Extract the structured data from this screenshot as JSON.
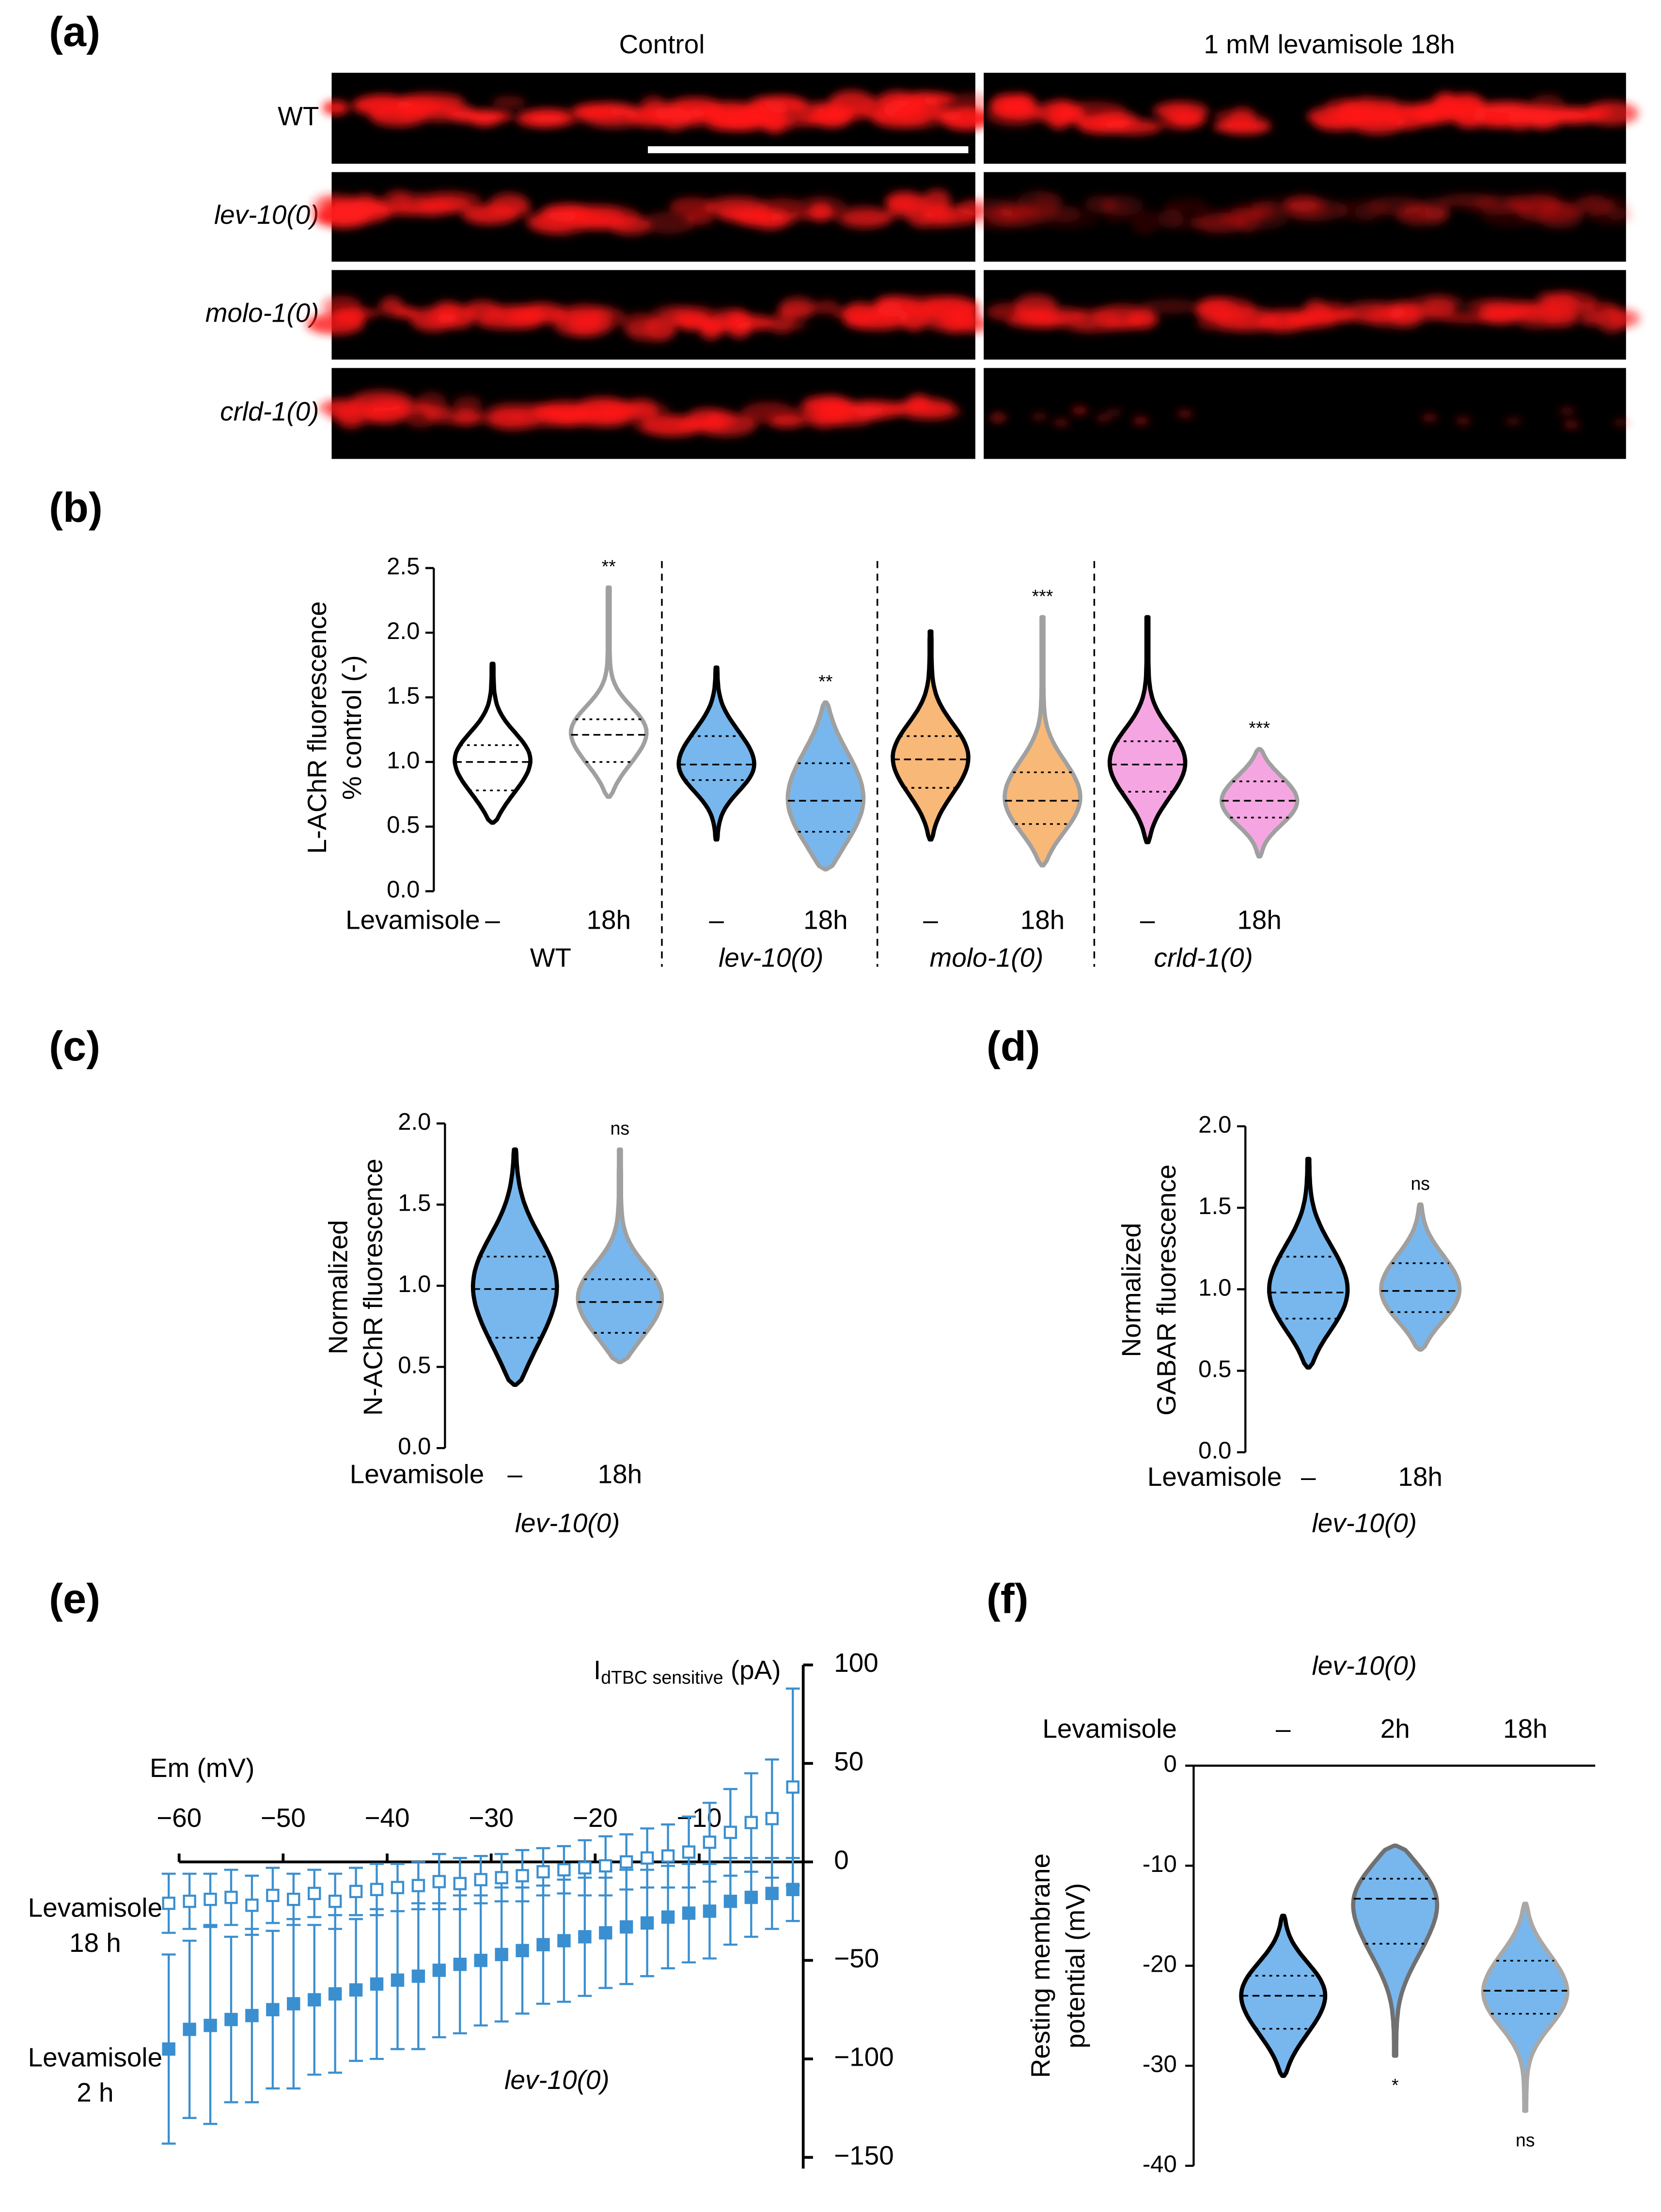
{
  "image_panel": {
    "panel": "(a)",
    "columns": [
      "Control",
      "1 mM levamisole 18h"
    ],
    "rows": [
      "WT",
      "lev-10(0)",
      "molo-1(0)",
      "crld-1(0)"
    ]
  },
  "chart_data": [
    {
      "panel": "(b)",
      "type": "violin",
      "y_label": [
        "L-AChR fluorescence",
        "% control (-)"
      ],
      "ylim": [
        0,
        2.5
      ],
      "yticks": [
        {
          "value": 0,
          "label": "0.0"
        },
        {
          "value": 0.5,
          "label": "0.5"
        },
        {
          "value": 1,
          "label": "1.0"
        },
        {
          "value": 1.5,
          "label": "1.5"
        },
        {
          "value": 2,
          "label": "2.0"
        },
        {
          "value": 2.5,
          "label": "2.5"
        }
      ],
      "row_label": "Levamisole",
      "groups": [
        {
          "name": "WT",
          "italic": false,
          "violins": [
            {
              "treatment": "–",
              "fill": "#ffffff",
              "edge": "#000000",
              "min": 0.53,
              "q1": 0.78,
              "median": 1.0,
              "q3": 1.13,
              "max": 1.76
            },
            {
              "treatment": "18h",
              "fill": "#ffffff",
              "edge": "#a0a0a0",
              "min": 0.73,
              "q1": 1.0,
              "median": 1.21,
              "q3": 1.33,
              "max": 2.35,
              "significance": "**"
            }
          ]
        },
        {
          "name": "lev-10(0)",
          "italic": true,
          "violins": [
            {
              "treatment": "–",
              "fill": "#77b7ee",
              "edge": "#000000",
              "min": 0.4,
              "q1": 0.86,
              "median": 0.98,
              "q3": 1.2,
              "max": 1.73
            },
            {
              "treatment": "18h",
              "fill": "#77b7ee",
              "edge": "#a0a0a0",
              "min": 0.17,
              "q1": 0.46,
              "median": 0.7,
              "q3": 0.99,
              "max": 1.46,
              "significance": "**"
            }
          ]
        },
        {
          "name": "molo-1(0)",
          "italic": true,
          "violins": [
            {
              "treatment": "–",
              "fill": "#f8b878",
              "edge": "#000000",
              "min": 0.4,
              "q1": 0.8,
              "median": 1.02,
              "q3": 1.2,
              "max": 2.01
            },
            {
              "treatment": "18h",
              "fill": "#f8b878",
              "edge": "#a0a0a0",
              "min": 0.2,
              "q1": 0.52,
              "median": 0.7,
              "q3": 0.92,
              "max": 2.12,
              "significance": "***"
            }
          ]
        },
        {
          "name": "crld-1(0)",
          "italic": true,
          "violins": [
            {
              "treatment": "–",
              "fill": "#f5a6e2",
              "edge": "#000000",
              "min": 0.38,
              "q1": 0.77,
              "median": 0.98,
              "q3": 1.16,
              "max": 2.12
            },
            {
              "treatment": "18h",
              "fill": "#f5a6e2",
              "edge": "#a0a0a0",
              "min": 0.27,
              "q1": 0.57,
              "median": 0.7,
              "q3": 0.85,
              "max": 1.1,
              "significance": "***"
            }
          ]
        }
      ]
    },
    {
      "panel": "(c)",
      "type": "violin",
      "y_label": [
        "Normalized",
        "N-AChR fluorescence"
      ],
      "ylim": [
        0,
        2
      ],
      "yticks": [
        {
          "value": 0,
          "label": "0.0"
        },
        {
          "value": 0.5,
          "label": "0.5"
        },
        {
          "value": 1,
          "label": "1.0"
        },
        {
          "value": 1.5,
          "label": "1.5"
        },
        {
          "value": 2,
          "label": "2.0"
        }
      ],
      "row_label": "Levamisole",
      "groups": [
        {
          "name": "lev-10(0)",
          "italic": true,
          "violins": [
            {
              "treatment": "–",
              "fill": "#77b7ee",
              "edge": "#000000",
              "min": 0.39,
              "q1": 0.68,
              "median": 0.98,
              "q3": 1.18,
              "max": 1.84
            },
            {
              "treatment": "18h",
              "fill": "#77b7ee",
              "edge": "#a0a0a0",
              "min": 0.53,
              "q1": 0.71,
              "median": 0.9,
              "q3": 1.04,
              "max": 1.84,
              "significance": "ns"
            }
          ]
        }
      ]
    },
    {
      "panel": "(d)",
      "type": "violin",
      "y_label": [
        "Normalized",
        "GABAR fluorescence"
      ],
      "ylim": [
        0,
        2
      ],
      "yticks": [
        {
          "value": 0,
          "label": "0.0"
        },
        {
          "value": 0.5,
          "label": "0.5"
        },
        {
          "value": 1,
          "label": "1.0"
        },
        {
          "value": 1.5,
          "label": "1.5"
        },
        {
          "value": 2,
          "label": "2.0"
        }
      ],
      "row_label": "Levamisole",
      "groups": [
        {
          "name": "lev-10(0)",
          "italic": true,
          "violins": [
            {
              "treatment": "–",
              "fill": "#77b7ee",
              "edge": "#000000",
              "min": 0.52,
              "q1": 0.82,
              "median": 0.98,
              "q3": 1.2,
              "max": 1.8
            },
            {
              "treatment": "18h",
              "fill": "#77b7ee",
              "edge": "#a0a0a0",
              "min": 0.63,
              "q1": 0.86,
              "median": 0.99,
              "q3": 1.16,
              "max": 1.52,
              "significance": "ns"
            }
          ]
        }
      ]
    },
    {
      "panel": "(e)",
      "type": "errorbar",
      "x_label": "Em (mV)",
      "y_label": {
        "main": "I",
        "sub": "dTBC sensitive",
        "unit": "(pA)"
      },
      "annotation": "lev-10(0)",
      "xlim": [
        -60,
        0
      ],
      "ylim": [
        -150,
        100
      ],
      "xticks": [
        {
          "value": -60,
          "label": "−60"
        },
        {
          "value": -50,
          "label": "−50"
        },
        {
          "value": -40,
          "label": "−40"
        },
        {
          "value": -30,
          "label": "−30"
        },
        {
          "value": -20,
          "label": "−20"
        },
        {
          "value": -10,
          "label": "−10"
        }
      ],
      "yticks": [
        100,
        50,
        0,
        {
          "value": -50,
          "label": "−50"
        },
        {
          "value": -100,
          "label": "−100"
        },
        {
          "value": -150,
          "label": "−150"
        }
      ],
      "x": [
        -61,
        -59,
        -57,
        -55,
        -53,
        -51,
        -49,
        -47,
        -45,
        -43,
        -41,
        -39,
        -37,
        -35,
        -33,
        -31,
        -29,
        -27,
        -25,
        -23,
        -21,
        -19,
        -17,
        -15,
        -13,
        -11,
        -9,
        -7,
        -5,
        -3,
        -1
      ],
      "series": [
        {
          "name": [
            "Levamisole",
            "18 h"
          ],
          "color": "#3a8fd0",
          "marker": "open",
          "values": [
            -21,
            -20,
            -19,
            -18,
            -22,
            -17,
            -19,
            -16,
            -20,
            -15,
            -14,
            -13,
            -12,
            -10,
            -11,
            -9,
            -8,
            -7,
            -5,
            -4,
            -3,
            -2,
            0,
            2,
            3,
            5,
            10,
            15,
            20,
            22,
            38
          ],
          "errors": [
            15,
            14,
            13,
            14,
            15,
            14,
            13,
            12,
            14,
            12,
            13,
            12,
            12,
            14,
            13,
            12,
            12,
            13,
            12,
            12,
            14,
            15,
            14,
            15,
            16,
            18,
            20,
            22,
            25,
            30,
            50
          ]
        },
        {
          "name": [
            "Levamisole",
            "2 h"
          ],
          "color": "#3a8fd0",
          "marker": "filled",
          "values": [
            -95,
            -85,
            -83,
            -80,
            -78,
            -75,
            -72,
            -70,
            -67,
            -65,
            -62,
            -60,
            -58,
            -55,
            -52,
            -50,
            -47,
            -45,
            -42,
            -40,
            -38,
            -36,
            -33,
            -31,
            -28,
            -26,
            -25,
            -20,
            -18,
            -16,
            -14
          ],
          "errors": [
            48,
            45,
            50,
            42,
            44,
            40,
            43,
            38,
            40,
            36,
            38,
            35,
            37,
            34,
            35,
            33,
            34,
            32,
            30,
            31,
            30,
            28,
            29,
            27,
            26,
            25,
            24,
            22,
            20,
            18,
            16
          ]
        }
      ]
    },
    {
      "panel": "(f)",
      "type": "violin",
      "title": "lev-10(0)",
      "y_label": [
        "Resting membrane",
        "potential  (mV)"
      ],
      "ylim": [
        -40,
        0
      ],
      "yticks": [
        0,
        -10,
        -20,
        -30,
        -40
      ],
      "row_label": "Levamisole",
      "violins": [
        {
          "treatment": "–",
          "fill": "#77b7ee",
          "edge": "#000000",
          "min": -31,
          "q1": -26.3,
          "median": -23,
          "q3": -21,
          "max": -15
        },
        {
          "treatment": "2h",
          "fill": "#77b7ee",
          "edge": "#707070",
          "min": -29,
          "q1": -17.8,
          "median": -13.3,
          "q3": -11.3,
          "max": -8,
          "significance": "*"
        },
        {
          "treatment": "18h",
          "fill": "#77b7ee",
          "edge": "#a8a8a8",
          "min": -34.5,
          "q1": -24.8,
          "median": -22.5,
          "q3": -19.5,
          "max": -13.8,
          "significance": "ns"
        }
      ]
    }
  ]
}
